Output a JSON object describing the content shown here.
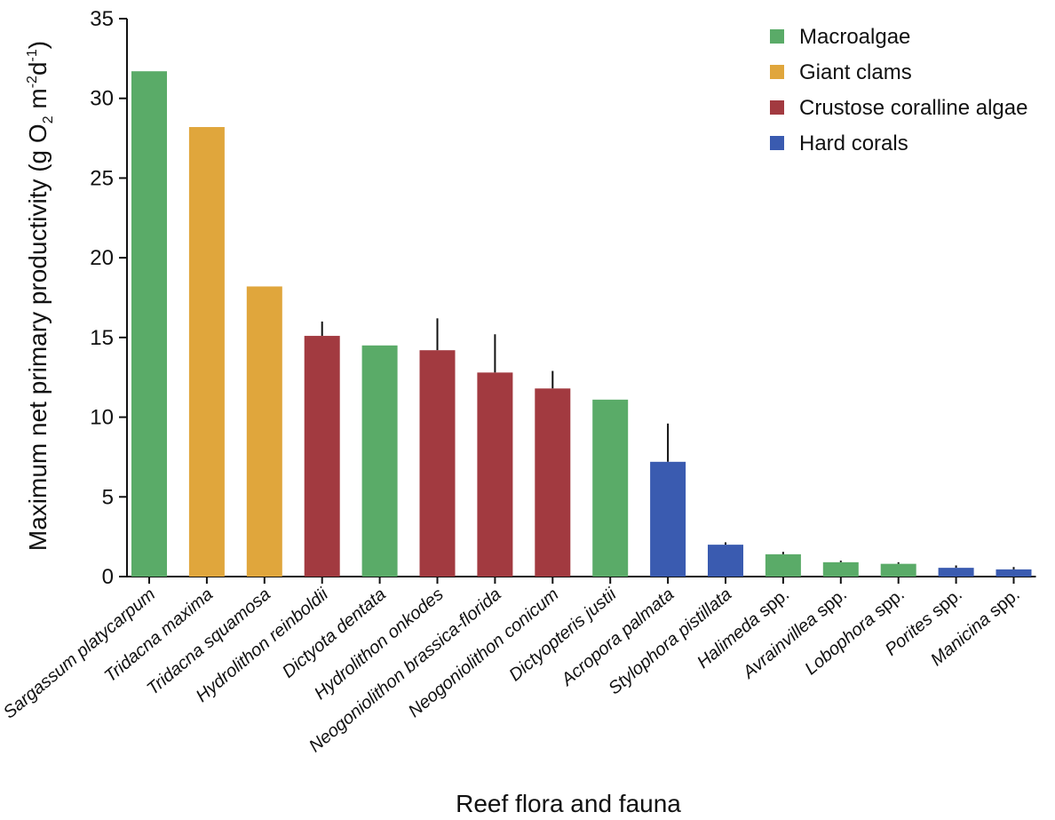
{
  "chart_data": {
    "type": "bar",
    "xlabel": "Reef flora and fauna",
    "ylabel": "Maximum net primary productivity (g O",
    "ylabel_sub_1": "2",
    "ylabel_mid": " m",
    "ylabel_sup_1": "-2",
    "ylabel_d": "d",
    "ylabel_sup_2": "-1",
    "ylabel_end": ")",
    "ylim": [
      0,
      35
    ],
    "yticks": [
      0,
      5,
      10,
      15,
      20,
      25,
      30,
      35
    ],
    "grid": false,
    "legend_position": "top-right",
    "groups": [
      {
        "name": "Macroalgae",
        "color": "#5aab68"
      },
      {
        "name": "Giant clams",
        "color": "#e0a63c"
      },
      {
        "name": "Crustose coralline algae",
        "color": "#a23a40"
      },
      {
        "name": "Hard corals",
        "color": "#3a5bb0"
      }
    ],
    "bars": [
      {
        "genus": "Sargassum platycarpum",
        "suffix": "",
        "value": 31.7,
        "group": 0,
        "error": null
      },
      {
        "genus": "Tridacna maxima",
        "suffix": "",
        "value": 28.2,
        "group": 1,
        "error": null
      },
      {
        "genus": "Tridacna squamosa",
        "suffix": "",
        "value": 18.2,
        "group": 1,
        "error": null
      },
      {
        "genus": "Hydrolithon reinboldii",
        "suffix": "",
        "value": 15.1,
        "group": 2,
        "error": 0.9
      },
      {
        "genus": "Dictyota dentata",
        "suffix": "",
        "value": 14.5,
        "group": 0,
        "error": null
      },
      {
        "genus": "Hydrolithon onkodes",
        "suffix": "",
        "value": 14.2,
        "group": 2,
        "error": 2.0
      },
      {
        "genus": "Neogoniolithon brassica-florida",
        "suffix": "",
        "value": 12.8,
        "group": 2,
        "error": 2.4
      },
      {
        "genus": "Neogoniolithon conicum",
        "suffix": "",
        "value": 11.8,
        "group": 2,
        "error": 1.1
      },
      {
        "genus": "Dictyopteris justii",
        "suffix": "",
        "value": 11.1,
        "group": 0,
        "error": null
      },
      {
        "genus": "Acropora palmata",
        "suffix": "",
        "value": 7.2,
        "group": 3,
        "error": 2.4
      },
      {
        "genus": "Stylophora pistillata",
        "suffix": "",
        "value": 2.0,
        "group": 3,
        "error": 0.15
      },
      {
        "genus": "Halimeda",
        "suffix": " spp.",
        "value": 1.4,
        "group": 0,
        "error": 0.15
      },
      {
        "genus": "Avrainvillea",
        "suffix": " spp.",
        "value": 0.9,
        "group": 0,
        "error": 0.1
      },
      {
        "genus": "Lobophora",
        "suffix": " spp.",
        "value": 0.8,
        "group": 0,
        "error": 0.1
      },
      {
        "genus": "Porites",
        "suffix": " spp.",
        "value": 0.55,
        "group": 3,
        "error": 0.15
      },
      {
        "genus": "Manicina",
        "suffix": " spp.",
        "value": 0.45,
        "group": 3,
        "error": 0.15
      }
    ]
  }
}
